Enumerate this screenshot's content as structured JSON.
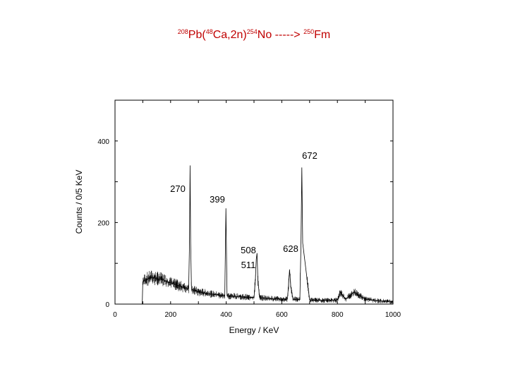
{
  "title": {
    "mass_pb": "208",
    "pb": "Pb(",
    "mass_ca": "48",
    "ca": "Ca,2n)",
    "mass_no": "254",
    "no_arrow": "No -----> ",
    "mass_fm": "250",
    "fm": "Fm"
  },
  "chart_data": {
    "type": "line",
    "xlabel": "Energy / KeV",
    "ylabel": "Counts / 0/5 KeV",
    "xlim": [
      0,
      1000
    ],
    "ylim": [
      0,
      500
    ],
    "x_ticks": [
      "0",
      "200",
      "400",
      "600",
      "800",
      "1000"
    ],
    "y_ticks": [
      "0",
      "200",
      "400"
    ],
    "grid": false,
    "line_color": "#000000",
    "series": [
      {
        "x": [
          0,
          98,
          100,
          110,
          130,
          150,
          170,
          200,
          230,
          250,
          265,
          268,
          270,
          272,
          275,
          300,
          350,
          395,
          399,
          403,
          450,
          500,
          505,
          508,
          511,
          514,
          520,
          550,
          600,
          620,
          624,
          628,
          632,
          640,
          665,
          669,
          672,
          675,
          700,
          750,
          800,
          810,
          830,
          860,
          900,
          950,
          1000
        ],
        "y": [
          0,
          0,
          55,
          60,
          65,
          63,
          60,
          52,
          45,
          40,
          38,
          150,
          340,
          150,
          36,
          30,
          24,
          20,
          235,
          20,
          18,
          16,
          60,
          110,
          125,
          60,
          16,
          14,
          12,
          12,
          45,
          85,
          45,
          12,
          11,
          150,
          335,
          150,
          10,
          9,
          10,
          30,
          12,
          30,
          12,
          8,
          6
        ]
      }
    ],
    "annotations": [
      {
        "text": "270",
        "x": 270
      },
      {
        "text": "399",
        "x": 399
      },
      {
        "text": "508",
        "x": 508
      },
      {
        "text": "511",
        "x": 511
      },
      {
        "text": "628",
        "x": 628
      },
      {
        "text": "672",
        "x": 672
      }
    ]
  }
}
